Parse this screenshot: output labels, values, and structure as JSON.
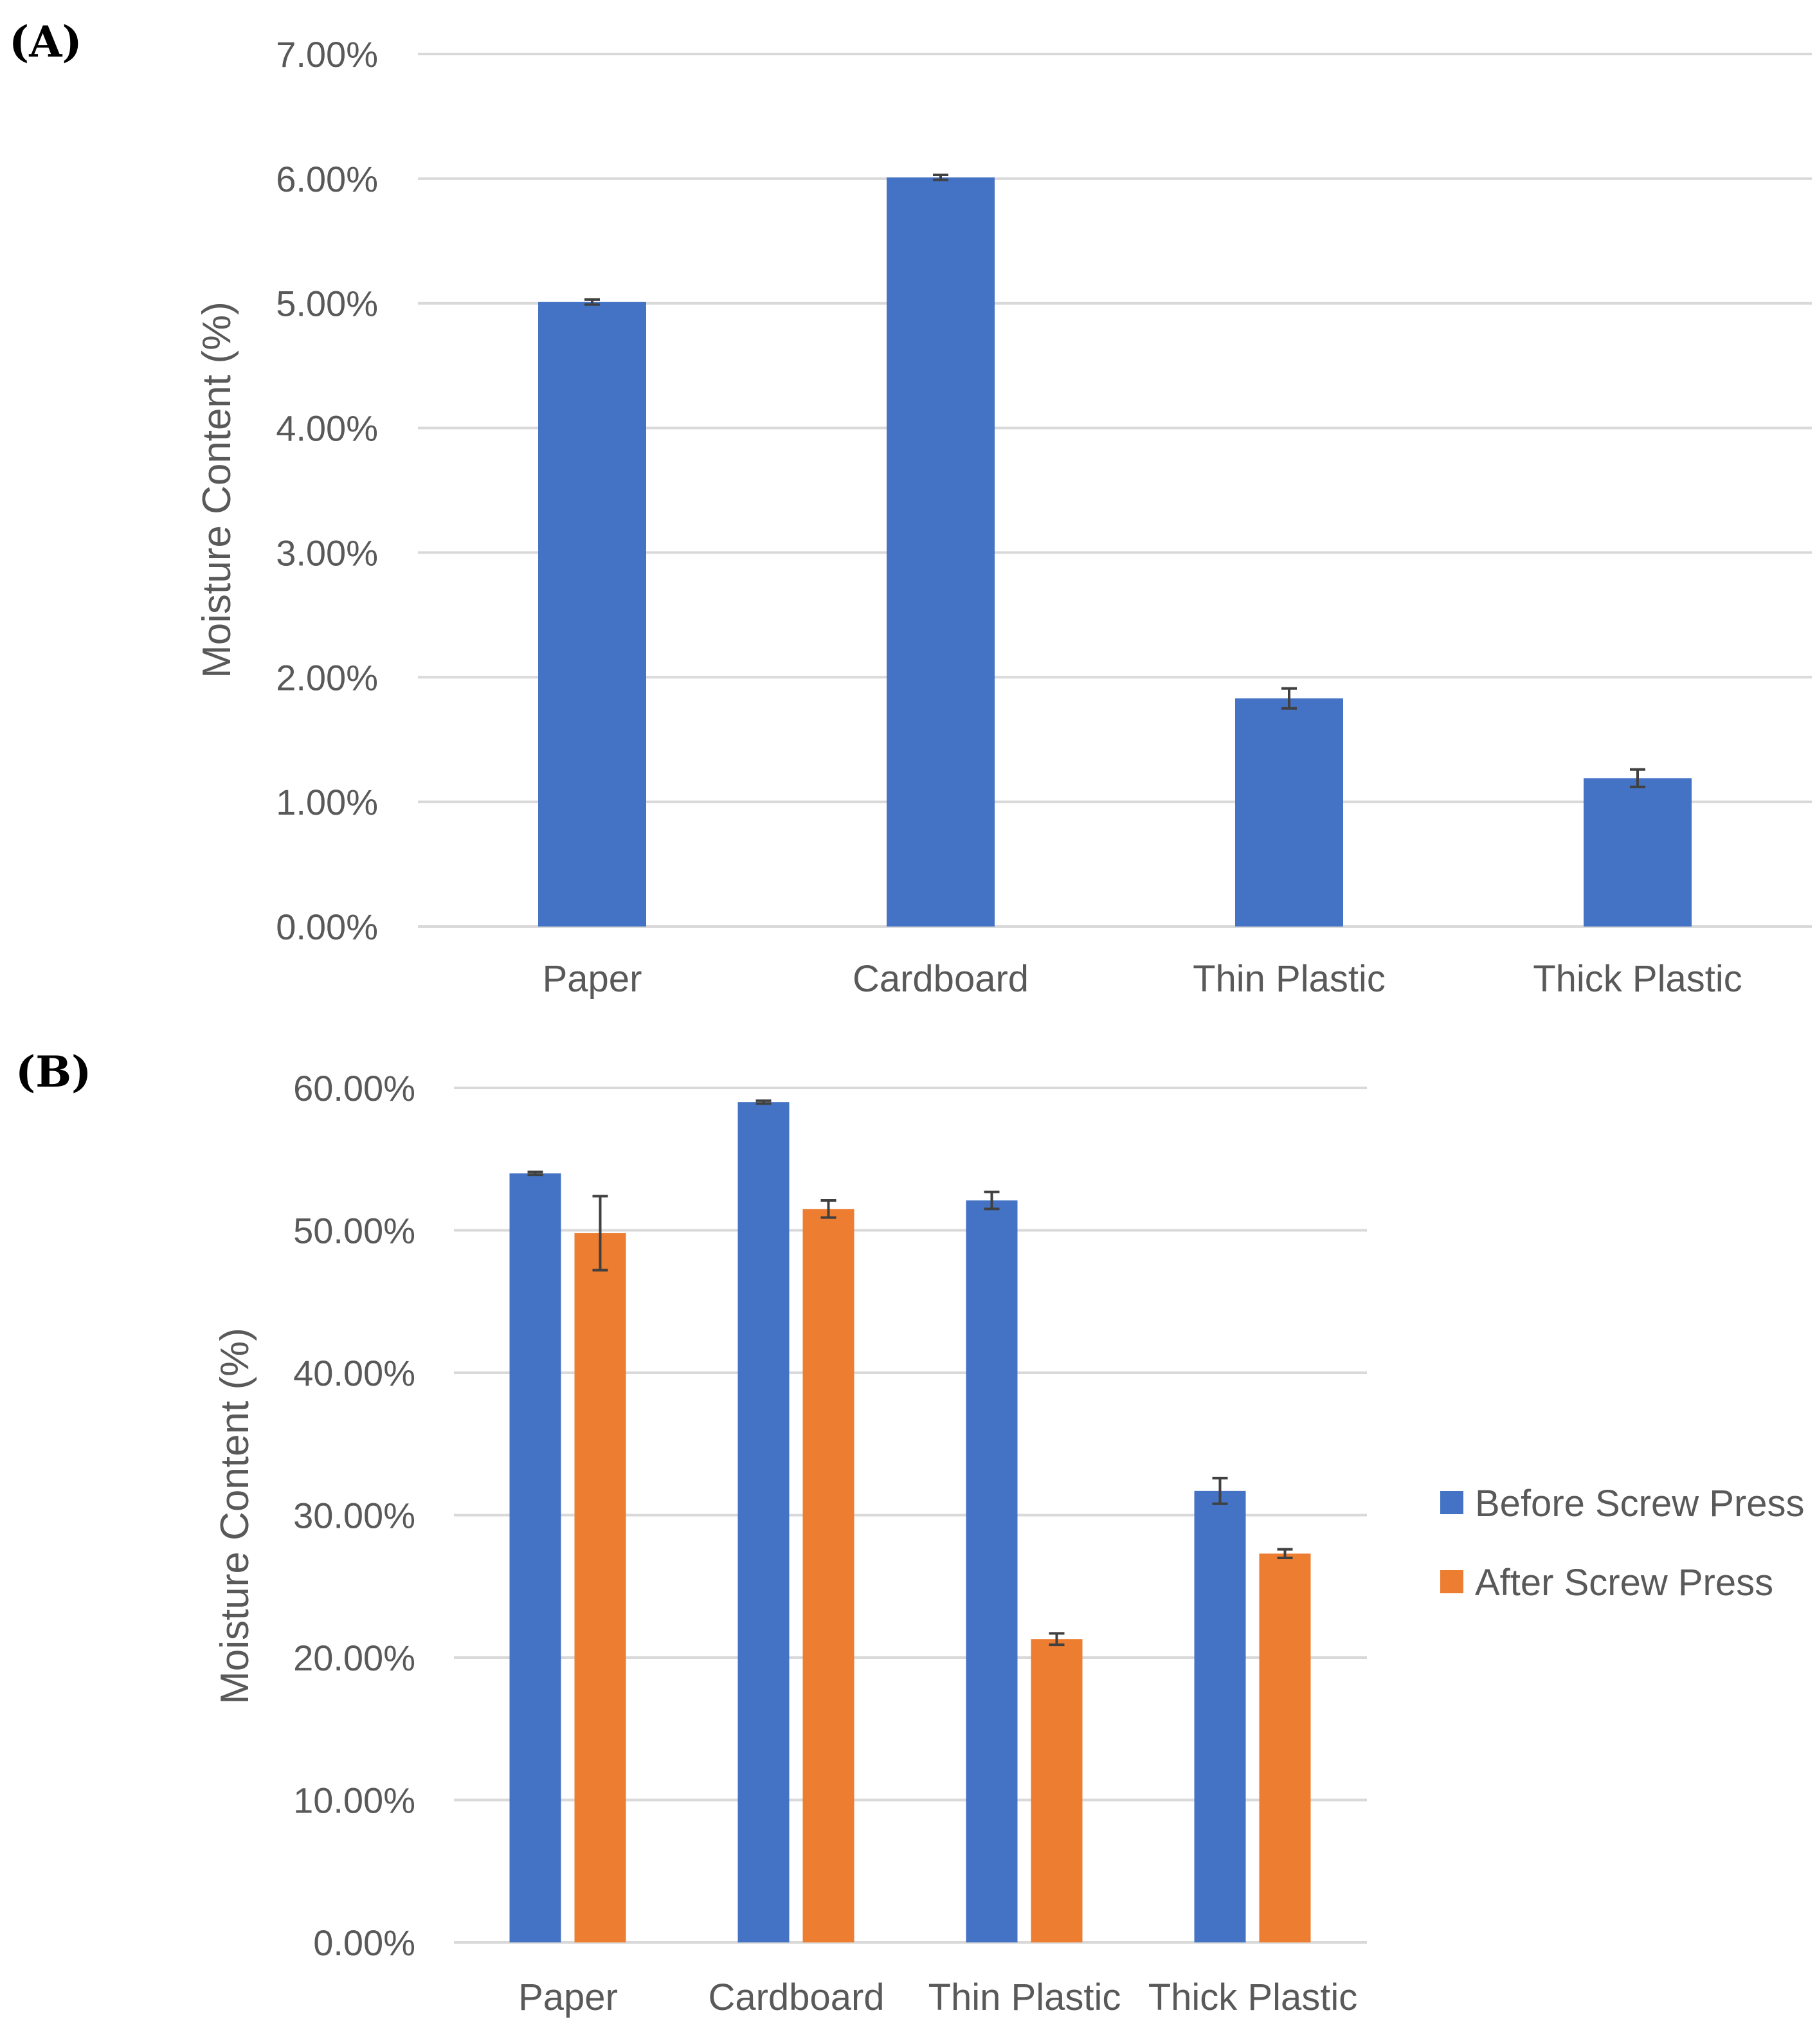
{
  "figure": {
    "panels": [
      "(A)",
      "(B)"
    ]
  },
  "chart_data": [
    {
      "type": "bar",
      "panel": "(A)",
      "title": "",
      "xlabel": "",
      "ylabel": "Moisture Content (%)",
      "categories": [
        "Paper",
        "Cardboard",
        "Thin Plastic",
        "Thick Plastic"
      ],
      "series": [
        {
          "name": "Moisture Content",
          "color": "#4472C4",
          "values": [
            5.01,
            6.01,
            1.83,
            1.19
          ],
          "errors": [
            0.02,
            0.02,
            0.08,
            0.07
          ]
        }
      ],
      "ylim": [
        0,
        7
      ],
      "yticks": [
        0,
        1,
        2,
        3,
        4,
        5,
        6,
        7
      ],
      "ytick_labels": [
        "0.00%",
        "1.00%",
        "2.00%",
        "3.00%",
        "4.00%",
        "5.00%",
        "6.00%",
        "7.00%"
      ],
      "grid": true,
      "legend": null
    },
    {
      "type": "bar",
      "panel": "(B)",
      "title": "",
      "xlabel": "",
      "ylabel": "Moisture Content (%)",
      "categories": [
        "Paper",
        "Cardboard",
        "Thin Plastic",
        "Thick Plastic"
      ],
      "series": [
        {
          "name": "Before Screw Press",
          "color": "#4472C4",
          "values": [
            54.0,
            59.0,
            52.1,
            31.7
          ],
          "errors": [
            0.1,
            0.1,
            0.6,
            0.9
          ]
        },
        {
          "name": "After Screw Press",
          "color": "#ED7D31",
          "values": [
            49.8,
            51.5,
            21.3,
            27.3
          ],
          "errors": [
            2.6,
            0.6,
            0.4,
            0.3
          ]
        }
      ],
      "ylim": [
        0,
        60
      ],
      "yticks": [
        0,
        10,
        20,
        30,
        40,
        50,
        60
      ],
      "ytick_labels": [
        "0.00%",
        "10.00%",
        "20.00%",
        "30.00%",
        "40.00%",
        "50.00%",
        "60.00%"
      ],
      "grid": true,
      "legend": "right"
    }
  ]
}
